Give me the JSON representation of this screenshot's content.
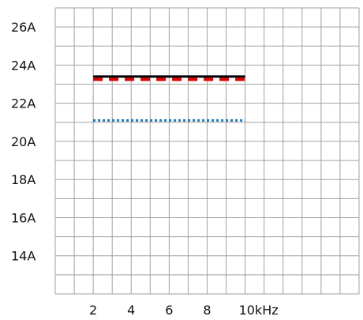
{
  "chart_data": {
    "type": "line",
    "title": "",
    "xlabel": "",
    "ylabel": "",
    "x_tick_labels": [
      "2",
      "4",
      "6",
      "8",
      "10kHz"
    ],
    "x_tick_values": [
      2,
      4,
      6,
      8,
      10
    ],
    "y_tick_labels": [
      "14A",
      "16A",
      "18A",
      "20A",
      "22A",
      "24A",
      "26A"
    ],
    "y_tick_values": [
      14,
      16,
      18,
      20,
      22,
      24,
      26
    ],
    "xlim": [
      0,
      16
    ],
    "ylim": [
      12,
      27
    ],
    "grid": true,
    "series": [
      {
        "x": [
          2,
          10
        ],
        "values": [
          23.4,
          23.4
        ],
        "color": "#000000",
        "style": "solid"
      },
      {
        "x": [
          2,
          10
        ],
        "values": [
          23.25,
          23.25
        ],
        "color": "#e00000",
        "style": "dashed"
      },
      {
        "x": [
          2,
          10
        ],
        "values": [
          21.1,
          21.1
        ],
        "color": "#1f77b4",
        "style": "dotted"
      }
    ]
  }
}
